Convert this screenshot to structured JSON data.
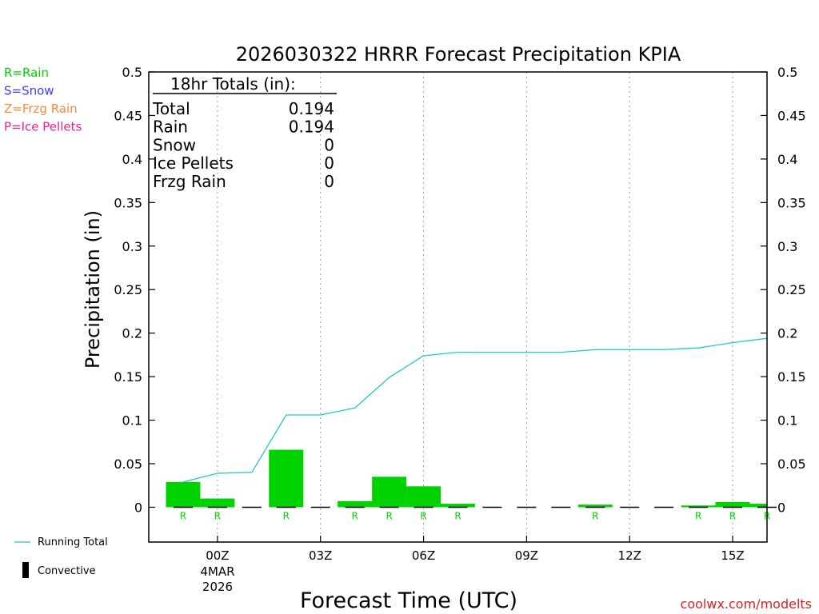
{
  "chart_data": {
    "type": "bar",
    "title": "2026030322 HRRR Forecast Precipitation KPIA",
    "xlabel": "Forecast Time (UTC)",
    "ylabel": "Precipitation (in)",
    "ylim": [
      -0.04,
      0.5
    ],
    "yticks": [
      0,
      0.05,
      0.1,
      0.15,
      0.2,
      0.25,
      0.3,
      0.35,
      0.4,
      0.45,
      0.5
    ],
    "ytick_labels": [
      "0",
      "0.05",
      "0.1",
      "0.15",
      "0.2",
      "0.25",
      "0.3",
      "0.35",
      "0.4",
      "0.45",
      "0.5"
    ],
    "xlim": [
      -2.0,
      16.0
    ],
    "xticks": [
      {
        "hour": 0,
        "label": "00Z"
      },
      {
        "hour": 3,
        "label": "03Z"
      },
      {
        "hour": 6,
        "label": "06Z"
      },
      {
        "hour": 9,
        "label": "09Z"
      },
      {
        "hour": 12,
        "label": "12Z"
      },
      {
        "hour": 15,
        "label": "15Z"
      }
    ],
    "date_label_day": "4MAR",
    "date_label_year": "2026",
    "hours": [
      -1,
      0,
      1,
      2,
      3,
      4,
      5,
      6,
      7,
      8,
      9,
      10,
      11,
      12,
      13,
      14,
      15,
      16
    ],
    "series": [
      {
        "name": "Rain",
        "color": "#00d200",
        "values": [
          0.029,
          0.01,
          0.0,
          0.066,
          0.0,
          0.007,
          0.035,
          0.024,
          0.004,
          0.0,
          0.0,
          0.0,
          0.003,
          0.0,
          0.0,
          0.002,
          0.006,
          0.004
        ]
      },
      {
        "name": "Convective",
        "color": "#000000",
        "values": [
          0,
          0,
          0,
          0,
          0,
          0,
          0,
          0,
          0,
          0,
          0,
          0,
          0,
          0,
          0,
          0,
          0,
          0
        ]
      },
      {
        "name": "Running Total",
        "type": "line",
        "color": "#1ec8c8",
        "values": [
          0.029,
          0.039,
          0.04,
          0.106,
          0.106,
          0.114,
          0.149,
          0.174,
          0.178,
          0.178,
          0.178,
          0.178,
          0.181,
          0.181,
          0.181,
          0.183,
          0.189,
          0.194
        ]
      }
    ],
    "precip_type_labels": [
      {
        "hour": -1,
        "label": "R"
      },
      {
        "hour": 0,
        "label": "R"
      },
      {
        "hour": 2,
        "label": "R"
      },
      {
        "hour": 4,
        "label": "R"
      },
      {
        "hour": 5,
        "label": "R"
      },
      {
        "hour": 6,
        "label": "R"
      },
      {
        "hour": 7,
        "label": "R"
      },
      {
        "hour": 11,
        "label": "R"
      },
      {
        "hour": 14,
        "label": "R"
      },
      {
        "hour": 15,
        "label": "R"
      },
      {
        "hour": 16,
        "label": "R"
      }
    ],
    "type_legend": [
      {
        "text": "R=Rain",
        "color": "#00d200"
      },
      {
        "text": "S=Snow",
        "color": "#3c3cff"
      },
      {
        "text": "Z=Frzg Rain",
        "color": "#f08c3c"
      },
      {
        "text": "P=Ice Pellets",
        "color": "#f01e96"
      }
    ],
    "totals_box": {
      "title": "18hr Totals (in):",
      "rows": [
        {
          "label": "Total",
          "value": "0.194"
        },
        {
          "label": "Rain",
          "value": "0.194"
        },
        {
          "label": "Snow",
          "value": "0"
        },
        {
          "label": "Ice Pellets",
          "value": "0"
        },
        {
          "label": "Frzg Rain",
          "value": "0"
        }
      ]
    },
    "legend": {
      "running_total": "Running Total",
      "convective": "Convective"
    },
    "credit": "coolwx.com/modelts"
  }
}
